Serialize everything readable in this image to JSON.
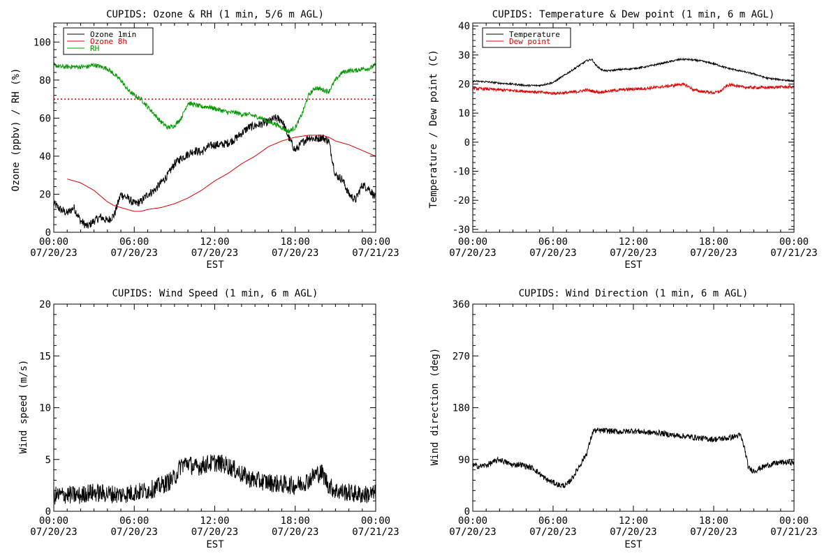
{
  "page_colors": {
    "background": "#ffffff",
    "axes": "#000000"
  },
  "chart_data": [
    {
      "type": "line",
      "title": "CUPIDS: Ozone & RH (1 min, 5/6 m AGL)",
      "xlabel": "EST",
      "ylabel": "Ozone (ppbv) / RH (%)",
      "xlim": [
        0,
        24
      ],
      "ylim": [
        0,
        110
      ],
      "x_ticks": [
        {
          "hour": 0,
          "time": "00:00",
          "date": "07/20/23"
        },
        {
          "hour": 6,
          "time": "06:00",
          "date": "07/20/23"
        },
        {
          "hour": 12,
          "time": "12:00",
          "date": "07/20/23"
        },
        {
          "hour": 18,
          "time": "18:00",
          "date": "07/20/23"
        },
        {
          "hour": 24,
          "time": "00:00",
          "date": "07/21/23"
        }
      ],
      "y_ticks": [
        0,
        20,
        40,
        60,
        80,
        100
      ],
      "legend_position": "top-left",
      "reference_line": {
        "y": 70,
        "color": "#dd0000",
        "style": "dotted"
      },
      "series": [
        {
          "name": "Ozone 1min",
          "color": "#000000",
          "noise": 2.2,
          "x": [
            0,
            0.5,
            1,
            1.5,
            2,
            2.5,
            3,
            3.5,
            4,
            4.5,
            5,
            5.5,
            6,
            6.5,
            7,
            7.5,
            8,
            8.5,
            9,
            9.5,
            10,
            10.5,
            11,
            11.5,
            12,
            12.5,
            13,
            13.5,
            14,
            14.5,
            15,
            15.5,
            16,
            16.5,
            17,
            17.5,
            18,
            18.5,
            19,
            19.5,
            20,
            20.5,
            21,
            21.5,
            22,
            22.5,
            23,
            23.5,
            24
          ],
          "y": [
            15,
            12,
            10,
            13,
            6,
            3,
            6,
            8,
            6,
            9,
            20,
            18,
            15,
            16,
            20,
            22,
            26,
            30,
            36,
            39,
            41,
            43,
            42,
            45,
            46,
            46,
            47,
            49,
            52,
            55,
            56,
            57,
            58,
            60,
            59,
            50,
            43,
            47,
            50,
            49,
            50,
            48,
            30,
            28,
            20,
            17,
            25,
            23,
            18
          ]
        },
        {
          "name": "Ozone 8h",
          "color": "#dd0000",
          "noise": 0,
          "x": [
            1,
            2,
            3,
            3.5,
            4,
            4.5,
            5,
            5.5,
            6,
            6.5,
            7,
            8,
            9,
            10,
            11,
            12,
            13,
            14,
            15,
            16,
            17,
            18,
            19,
            20,
            20.5,
            21,
            22,
            23,
            24
          ],
          "y": [
            28,
            26,
            22,
            19,
            16,
            14,
            13,
            12,
            11,
            11,
            12,
            13,
            15,
            18,
            22,
            27,
            31,
            36,
            40,
            45,
            48,
            50,
            51,
            51,
            50,
            48,
            46,
            43,
            40
          ]
        },
        {
          "name": "RH",
          "color": "#009900",
          "noise": 1.2,
          "x": [
            0,
            0.5,
            1,
            1.5,
            2,
            2.5,
            3,
            3.5,
            4,
            4.5,
            5,
            5.5,
            6,
            6.5,
            7,
            7.5,
            8,
            8.5,
            9,
            9.5,
            10,
            10.5,
            11,
            11.5,
            12,
            12.5,
            13,
            13.5,
            14,
            14.5,
            15,
            15.5,
            16,
            16.5,
            17,
            17.5,
            18,
            18.5,
            19,
            19.5,
            20,
            20.5,
            21,
            21.5,
            22,
            22.5,
            23,
            23.5,
            24
          ],
          "y": [
            88,
            87,
            87,
            87,
            87,
            87,
            88,
            87,
            86,
            83,
            80,
            75,
            72,
            70,
            66,
            62,
            58,
            55,
            56,
            60,
            68,
            67,
            66,
            66,
            65,
            64,
            63,
            63,
            62,
            62,
            61,
            60,
            58,
            57,
            55,
            53,
            55,
            62,
            72,
            76,
            75,
            74,
            80,
            84,
            85,
            85,
            86,
            86,
            88
          ]
        }
      ]
    },
    {
      "type": "line",
      "title": "CUPIDS: Temperature & Dew point (1 min, 6 m AGL)",
      "xlabel": "",
      "ylabel": "Temperature / Dew point (C)",
      "xlim": [
        0,
        24
      ],
      "ylim": [
        -31,
        41
      ],
      "x_ticks": [
        {
          "hour": 0,
          "time": "00:00",
          "date": "07/20/23"
        },
        {
          "hour": 6,
          "time": "06:00",
          "date": "07/20/23"
        },
        {
          "hour": 12,
          "time": "12:00",
          "date": "07/20/23"
        },
        {
          "hour": 18,
          "time": "18:00",
          "date": "07/20/23"
        },
        {
          "hour": 24,
          "time": "00:00",
          "date": "07/21/23"
        }
      ],
      "y_ticks": [
        -30,
        -20,
        -10,
        0,
        10,
        20,
        30,
        40
      ],
      "legend_position": "top-left",
      "series": [
        {
          "name": "Temperature",
          "color": "#000000",
          "noise": 0.3,
          "x": [
            0,
            1,
            2,
            3,
            4,
            5,
            6,
            6.5,
            7,
            7.5,
            8,
            8.5,
            8.9,
            9.2,
            9.6,
            10,
            11,
            12,
            13,
            14,
            15,
            15.5,
            16,
            17,
            18,
            19,
            20,
            21,
            22,
            23,
            24
          ],
          "y": [
            21,
            20.8,
            20.3,
            20,
            19.5,
            19.5,
            20.5,
            22,
            23.5,
            25,
            26.5,
            28,
            28.5,
            26.5,
            25,
            24.5,
            25,
            25.3,
            26,
            27,
            28,
            28.5,
            28.5,
            28,
            27,
            25.5,
            24.5,
            23.5,
            22,
            21.5,
            21
          ]
        },
        {
          "name": "Dew point",
          "color": "#dd0000",
          "noise": 0.5,
          "x": [
            0,
            1,
            2,
            3,
            4,
            5,
            6,
            7,
            8,
            8.5,
            9,
            9.5,
            10,
            11,
            12,
            13,
            14,
            15,
            15.5,
            16,
            16.5,
            17,
            17.5,
            18,
            18.5,
            19,
            19.5,
            20,
            21,
            22,
            23,
            24
          ],
          "y": [
            18.5,
            18.3,
            18,
            17.8,
            17.5,
            17.2,
            16.8,
            17,
            17.5,
            18,
            17.5,
            17.2,
            17.5,
            18,
            18.3,
            18.5,
            19,
            19.5,
            20,
            19.5,
            18,
            17.5,
            17.3,
            17,
            17.5,
            19.5,
            19.8,
            19,
            18.8,
            18.8,
            19,
            19
          ]
        }
      ]
    },
    {
      "type": "line",
      "title": "CUPIDS: Wind Speed (1 min, 6 m AGL)",
      "xlabel": "EST",
      "ylabel": "Wind speed (m/s)",
      "xlim": [
        0,
        24
      ],
      "ylim": [
        0,
        20
      ],
      "x_ticks": [
        {
          "hour": 0,
          "time": "00:00",
          "date": "07/20/23"
        },
        {
          "hour": 6,
          "time": "06:00",
          "date": "07/20/23"
        },
        {
          "hour": 12,
          "time": "12:00",
          "date": "07/20/23"
        },
        {
          "hour": 18,
          "time": "18:00",
          "date": "07/20/23"
        },
        {
          "hour": 24,
          "time": "00:00",
          "date": "07/21/23"
        }
      ],
      "y_ticks": [
        0,
        5,
        10,
        15,
        20
      ],
      "legend_position": "none",
      "series": [
        {
          "name": "",
          "color": "#000000",
          "noise": 0.9,
          "x": [
            0,
            1,
            2,
            2.5,
            3,
            4,
            5,
            6,
            7,
            7.5,
            8,
            8.5,
            9,
            9.5,
            10,
            10.5,
            11,
            11.5,
            12,
            12.5,
            13,
            13.5,
            14,
            14.5,
            15,
            16,
            17,
            18,
            18.5,
            19,
            19.5,
            20,
            20.5,
            21,
            22,
            23,
            24
          ],
          "y": [
            1.5,
            1.6,
            1.5,
            1.8,
            1.8,
            1.7,
            1.6,
            1.8,
            2,
            2.2,
            2.5,
            2.8,
            3.2,
            4.5,
            4.7,
            4.2,
            4.4,
            4.6,
            4.7,
            4.6,
            4.4,
            4,
            3.6,
            3.2,
            3,
            2.8,
            2.6,
            2.5,
            2.7,
            3,
            3.6,
            3.7,
            2.5,
            2,
            1.8,
            1.6,
            1.7
          ]
        }
      ]
    },
    {
      "type": "line",
      "title": "CUPIDS: Wind Direction (1 min, 6 m AGL)",
      "xlabel": "EST",
      "ylabel": "Wind direction (deg)",
      "xlim": [
        0,
        24
      ],
      "ylim": [
        0,
        360
      ],
      "x_ticks": [
        {
          "hour": 0,
          "time": "00:00",
          "date": "07/20/23"
        },
        {
          "hour": 6,
          "time": "06:00",
          "date": "07/20/23"
        },
        {
          "hour": 12,
          "time": "12:00",
          "date": "07/20/23"
        },
        {
          "hour": 18,
          "time": "18:00",
          "date": "07/20/23"
        },
        {
          "hour": 24,
          "time": "00:00",
          "date": "07/21/23"
        }
      ],
      "y_ticks": [
        0,
        90,
        180,
        270,
        360
      ],
      "legend_position": "none",
      "series": [
        {
          "name": "",
          "color": "#000000",
          "noise": 5,
          "x": [
            0,
            0.5,
            1,
            1.5,
            2,
            2.5,
            3,
            3.5,
            4,
            4.5,
            5,
            5.5,
            6,
            6.5,
            7,
            7.5,
            8,
            8.5,
            9,
            9.5,
            10,
            11,
            12,
            13,
            14,
            15,
            16,
            17,
            18,
            19,
            20,
            20.3,
            20.6,
            21,
            22,
            23,
            24
          ],
          "y": [
            80,
            78,
            80,
            85,
            90,
            85,
            80,
            82,
            78,
            75,
            65,
            55,
            50,
            45,
            45,
            60,
            80,
            100,
            140,
            140,
            140,
            138,
            140,
            137,
            136,
            132,
            130,
            127,
            125,
            127,
            132,
            110,
            75,
            70,
            80,
            85,
            85
          ]
        }
      ]
    }
  ]
}
